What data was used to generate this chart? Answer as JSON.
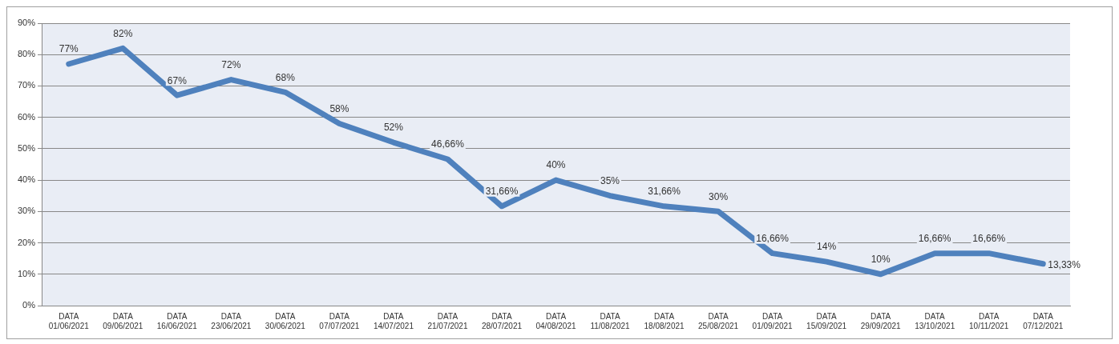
{
  "chart_data": {
    "type": "line",
    "categories": [
      "DATA\n01/06/2021",
      "DATA\n09/06/2021",
      "DATA\n16/06/2021",
      "DATA\n23/06/2021",
      "DATA\n30/06/2021",
      "DATA\n07/07/2021",
      "DATA\n14/07/2021",
      "DATA\n21/07/2021",
      "DATA\n28/07/2021",
      "DATA\n04/08/2021",
      "DATA\n11/08/2021",
      "DATA\n18/08/2021",
      "DATA\n25/08/2021",
      "DATA\n01/09/2021",
      "DATA\n15/09/2021",
      "DATA\n29/09/2021",
      "DATA\n13/10/2021",
      "DATA\n10/11/2021",
      "DATA\n07/12/2021"
    ],
    "series": [
      {
        "color": "#4f81bd",
        "values": [
          77,
          82,
          67,
          72,
          68,
          58,
          52,
          46.66,
          31.66,
          40,
          35,
          31.66,
          30,
          16.66,
          14,
          10,
          16.66,
          16.66,
          13.33
        ],
        "value_labels": [
          "77%",
          "82%",
          "67%",
          "72%",
          "68%",
          "58%",
          "52%",
          "46,66%",
          "31,66%",
          "40%",
          "35%",
          "31,66%",
          "30%",
          "16,66%",
          "14%",
          "10%",
          "16,66%",
          "16,66%",
          "13,33%"
        ]
      }
    ],
    "ylim": [
      0,
      90
    ],
    "yticks": [
      {
        "value": 0,
        "label": "0%"
      },
      {
        "value": 10,
        "label": "10%"
      },
      {
        "value": 20,
        "label": "20%"
      },
      {
        "value": 30,
        "label": "30%"
      },
      {
        "value": 40,
        "label": "40%"
      },
      {
        "value": 50,
        "label": "50%"
      },
      {
        "value": 60,
        "label": "60%"
      },
      {
        "value": 70,
        "label": "70%"
      },
      {
        "value": 80,
        "label": "80%"
      },
      {
        "value": 90,
        "label": "90%"
      }
    ],
    "grid": "y",
    "marker": "none",
    "line_style": "solid",
    "legend": false
  }
}
